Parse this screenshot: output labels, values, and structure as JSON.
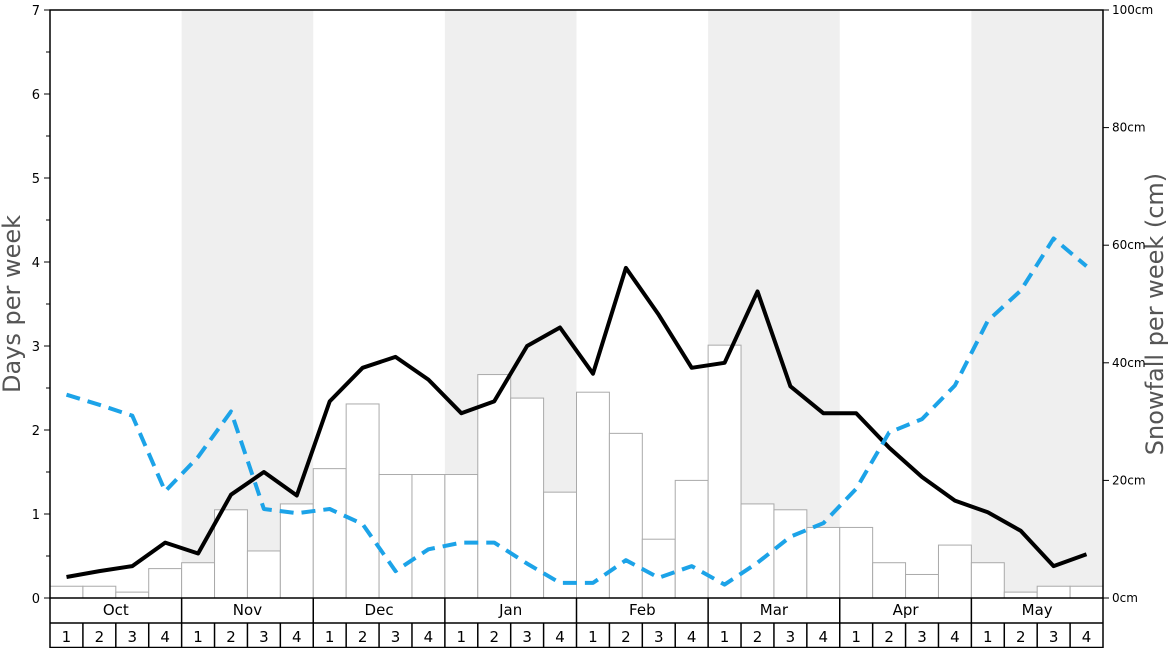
{
  "chart_data": {
    "type": "bar+line",
    "months": [
      "Oct",
      "Nov",
      "Dec",
      "Jan",
      "Feb",
      "Mar",
      "Apr",
      "May"
    ],
    "week_labels": [
      "1",
      "2",
      "3",
      "4"
    ],
    "left_axis": {
      "title": "Days per week",
      "ylim": [
        0,
        7
      ],
      "ticks": [
        "0",
        "1",
        "2",
        "3",
        "4",
        "5",
        "6",
        "7"
      ]
    },
    "right_axis": {
      "title": "Snowfall per week (cm)",
      "ylim": [
        0,
        100
      ],
      "ticks": [
        "0cm",
        "20cm",
        "40cm",
        "60cm",
        "80cm",
        "100cm"
      ]
    },
    "series": [
      {
        "kind": "bar",
        "axis": "right",
        "color": "#ffffff",
        "values": [
          2,
          2,
          1,
          5,
          6,
          15,
          8,
          16,
          22,
          33,
          21,
          21,
          21,
          38,
          34,
          18,
          35,
          28,
          10,
          20,
          43,
          16,
          15,
          12,
          12,
          6,
          4,
          9,
          6,
          1,
          2,
          2
        ]
      },
      {
        "kind": "line",
        "axis": "left",
        "color": "#000000",
        "style": "solid",
        "values": [
          0.25,
          0.32,
          0.38,
          0.66,
          0.53,
          1.23,
          1.5,
          1.22,
          2.34,
          2.74,
          2.87,
          2.6,
          2.2,
          2.34,
          3.0,
          3.22,
          2.67,
          3.93,
          3.37,
          2.74,
          2.8,
          3.65,
          2.52,
          2.2,
          2.2,
          1.79,
          1.44,
          1.16,
          1.02,
          0.8,
          0.38,
          0.52
        ]
      },
      {
        "kind": "line",
        "axis": "left",
        "color": "#1ca3e8",
        "style": "dashed",
        "values": [
          2.42,
          2.3,
          2.17,
          1.27,
          1.68,
          2.22,
          1.06,
          1.01,
          1.06,
          0.88,
          0.32,
          0.58,
          0.66,
          0.66,
          0.41,
          0.18,
          0.18,
          0.45,
          0.24,
          0.38,
          0.16,
          0.42,
          0.73,
          0.89,
          1.3,
          1.97,
          2.13,
          2.53,
          3.3,
          3.66,
          4.28,
          3.95
        ]
      }
    ],
    "grid": false,
    "band_color": "#efefef"
  }
}
